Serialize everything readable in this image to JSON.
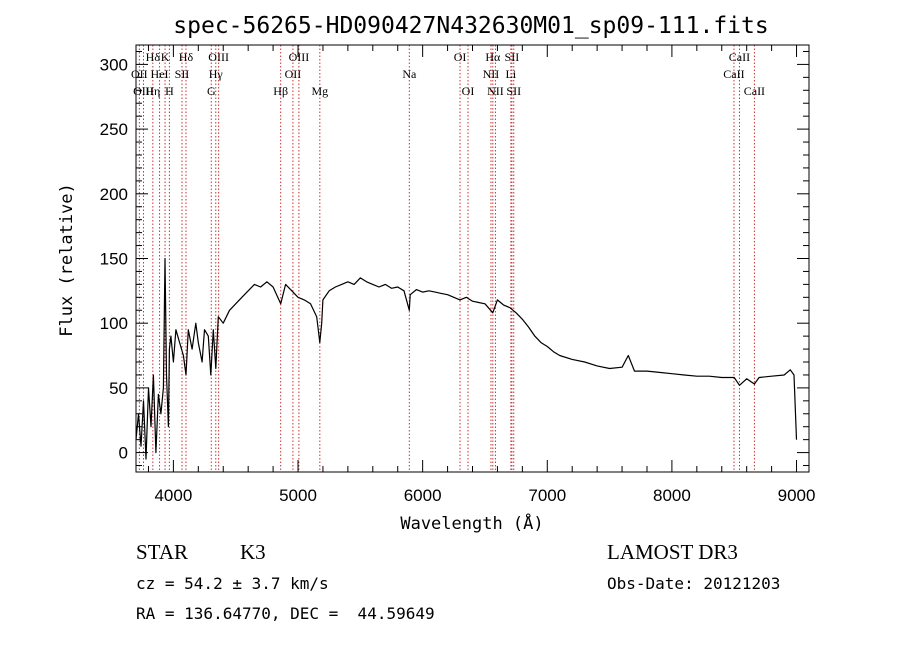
{
  "chart_data": {
    "type": "line",
    "title": "spec-56265-HD090427N432630M01_sp09-111.fits",
    "xlabel": "Wavelength (Å)",
    "ylabel": "Flux (relative)",
    "xlim": [
      3700,
      9100
    ],
    "ylim": [
      -15,
      315
    ],
    "xticks": [
      4000,
      5000,
      6000,
      7000,
      8000,
      9000
    ],
    "yticks": [
      0,
      50,
      100,
      150,
      200,
      250,
      300
    ],
    "grid": false,
    "series": [
      {
        "name": "spectrum",
        "color": "#000000",
        "x": [
          3700,
          3720,
          3740,
          3760,
          3780,
          3800,
          3820,
          3840,
          3860,
          3880,
          3900,
          3920,
          3933,
          3945,
          3960,
          3968,
          3980,
          4000,
          4020,
          4050,
          4080,
          4101,
          4120,
          4150,
          4180,
          4200,
          4230,
          4250,
          4280,
          4300,
          4320,
          4340,
          4360,
          4400,
          4450,
          4500,
          4550,
          4600,
          4650,
          4700,
          4750,
          4800,
          4861,
          4900,
          4950,
          5000,
          5050,
          5100,
          5150,
          5175,
          5190,
          5200,
          5250,
          5300,
          5350,
          5400,
          5450,
          5500,
          5550,
          5600,
          5650,
          5700,
          5750,
          5800,
          5850,
          5893,
          5900,
          5950,
          6000,
          6050,
          6100,
          6150,
          6200,
          6250,
          6300,
          6350,
          6400,
          6450,
          6500,
          6563,
          6600,
          6650,
          6700,
          6750,
          6800,
          6850,
          6900,
          6950,
          7000,
          7050,
          7100,
          7200,
          7300,
          7400,
          7500,
          7600,
          7650,
          7700,
          7800,
          7900,
          8000,
          8100,
          8200,
          8300,
          8400,
          8500,
          8542,
          8600,
          8662,
          8700,
          8800,
          8900,
          8950,
          8980,
          9000
        ],
        "y": [
          10,
          30,
          5,
          40,
          -5,
          50,
          20,
          60,
          0,
          45,
          30,
          50,
          150,
          60,
          20,
          80,
          90,
          70,
          95,
          85,
          75,
          60,
          95,
          80,
          100,
          85,
          70,
          95,
          90,
          60,
          95,
          65,
          105,
          100,
          110,
          115,
          120,
          125,
          130,
          128,
          132,
          128,
          115,
          130,
          125,
          120,
          118,
          115,
          105,
          85,
          100,
          118,
          125,
          128,
          130,
          132,
          130,
          135,
          132,
          130,
          128,
          130,
          127,
          128,
          125,
          110,
          122,
          126,
          124,
          125,
          124,
          123,
          122,
          120,
          118,
          120,
          117,
          116,
          115,
          108,
          118,
          114,
          112,
          108,
          103,
          97,
          90,
          85,
          82,
          78,
          75,
          72,
          70,
          67,
          65,
          66,
          75,
          63,
          63,
          62,
          61,
          60,
          59,
          59,
          58,
          58,
          52,
          57,
          53,
          58,
          59,
          60,
          64,
          60,
          10
        ]
      }
    ],
    "line_color": "#cc3333",
    "annotations": [
      {
        "label": "Hδ",
        "wavelength": 3835,
        "row": 1
      },
      {
        "label": "OII",
        "wavelength": 3727,
        "row": 2
      },
      {
        "label": "OIII",
        "wavelength": 3760,
        "row": 3
      },
      {
        "label": "HeI",
        "wavelength": 3889,
        "row": 2
      },
      {
        "label": "Hη",
        "wavelength": 3835,
        "row": 3
      },
      {
        "label": "K",
        "wavelength": 3933,
        "row": 1
      },
      {
        "label": "SII",
        "wavelength": 4069,
        "row": 2
      },
      {
        "label": "H",
        "wavelength": 3968,
        "row": 3
      },
      {
        "label": "Hδ",
        "wavelength": 4101,
        "row": 1
      },
      {
        "label": "OIII",
        "wavelength": 4363,
        "row": 1
      },
      {
        "label": "Hγ",
        "wavelength": 4340,
        "row": 2
      },
      {
        "label": "G",
        "wavelength": 4304,
        "row": 3
      },
      {
        "label": "OIII",
        "wavelength": 5007,
        "row": 1
      },
      {
        "label": "OII",
        "wavelength": 4959,
        "row": 2
      },
      {
        "label": "Hβ",
        "wavelength": 4861,
        "row": 3
      },
      {
        "label": "Mg",
        "wavelength": 5175,
        "row": 3
      },
      {
        "label": "Na",
        "wavelength": 5893,
        "row": 2
      },
      {
        "label": "OI",
        "wavelength": 6300,
        "row": 1
      },
      {
        "label": "OI",
        "wavelength": 6364,
        "row": 3
      },
      {
        "label": "Hα",
        "wavelength": 6563,
        "row": 1
      },
      {
        "label": "SII",
        "wavelength": 6716,
        "row": 1
      },
      {
        "label": "NII",
        "wavelength": 6548,
        "row": 2
      },
      {
        "label": "Li",
        "wavelength": 6708,
        "row": 2
      },
      {
        "label": "NII",
        "wavelength": 6584,
        "row": 3
      },
      {
        "label": "SII",
        "wavelength": 6731,
        "row": 3
      },
      {
        "label": "CaII",
        "wavelength": 8542,
        "row": 1
      },
      {
        "label": "CaII",
        "wavelength": 8498,
        "row": 2
      },
      {
        "label": "CaII",
        "wavelength": 8662,
        "row": 3
      }
    ],
    "extra_lines": [
      3727,
      3760,
      3835,
      3889,
      3933,
      3968,
      4069,
      4101,
      4304,
      4340,
      4363,
      4861,
      4959,
      5007,
      5175,
      5893,
      6300,
      6364,
      6548,
      6563,
      6584,
      6708,
      6716,
      6731,
      8498,
      8542,
      8662
    ]
  },
  "info": {
    "object_class": "STAR",
    "subclass": "K3",
    "survey": "LAMOST DR3",
    "redshift": "cz = 54.2 ± 3.7 km/s",
    "obs_date": "Obs-Date: 20121203",
    "coords": "RA = 136.64770, DEC =  44.59649"
  }
}
